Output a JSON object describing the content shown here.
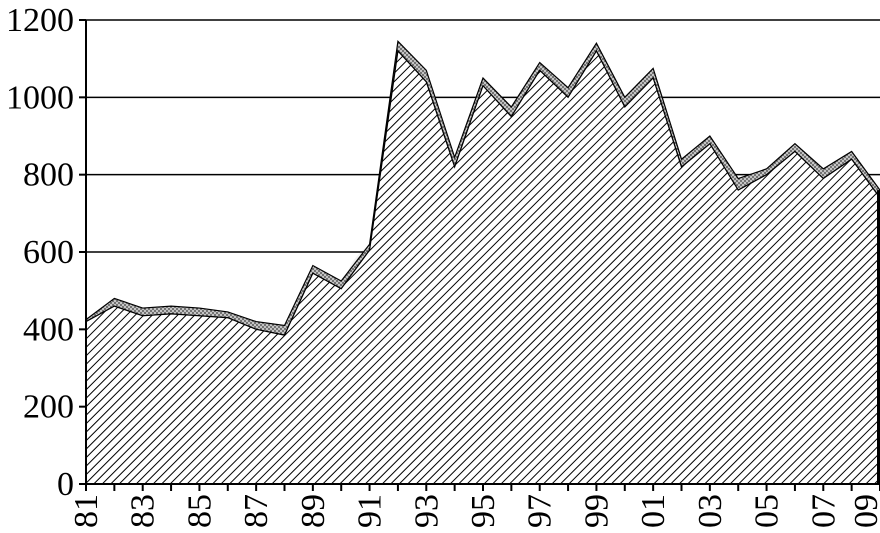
{
  "chart_data": {
    "type": "area",
    "title": "",
    "xlabel": "",
    "ylabel": "",
    "categories": [
      "81",
      "82",
      "83",
      "84",
      "85",
      "86",
      "87",
      "88",
      "89",
      "90",
      "91",
      "92",
      "93",
      "94",
      "95",
      "96",
      "97",
      "98",
      "99",
      "00",
      "01",
      "02",
      "03",
      "04",
      "05",
      "06",
      "07",
      "08",
      "09"
    ],
    "x_tick_labels": [
      "81",
      "83",
      "85",
      "87",
      "89",
      "91",
      "93",
      "95",
      "97",
      "99",
      "01",
      "03",
      "05",
      "07",
      "09"
    ],
    "y_ticks": [
      0,
      200,
      400,
      600,
      800,
      1000,
      1200
    ],
    "ylim": [
      0,
      1200
    ],
    "grid": "horizontal",
    "series": [
      {
        "values": [
          420,
          460,
          435,
          440,
          435,
          430,
          400,
          385,
          545,
          505,
          605,
          1120,
          1040,
          820,
          1030,
          950,
          1070,
          1000,
          1120,
          975,
          1050,
          820,
          880,
          760,
          800,
          860,
          790,
          840,
          740
        ]
      },
      {
        "values": [
          425,
          480,
          455,
          460,
          455,
          445,
          420,
          410,
          565,
          525,
          620,
          1145,
          1070,
          845,
          1050,
          975,
          1090,
          1025,
          1140,
          1000,
          1075,
          840,
          900,
          790,
          815,
          880,
          815,
          860,
          760
        ]
      }
    ],
    "colors": {
      "fill_lower": "#ffffff",
      "hatch": "#000000",
      "band": "#b8b8b8",
      "band_dots": "#404040",
      "axis": "#000000"
    }
  }
}
